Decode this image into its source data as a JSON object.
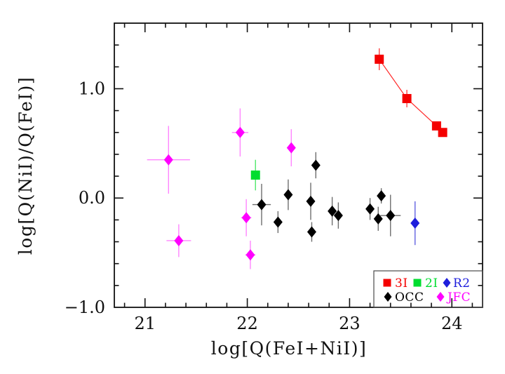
{
  "figure": {
    "background": "#ffffff",
    "frame_color": "#111111"
  },
  "chart_data": {
    "type": "scatter",
    "title": "",
    "xlabel": "log[Q(FeI+NiI)]",
    "ylabel": "log[Q(NiI)/Q(FeI)]",
    "xlim": [
      20.7,
      24.3
    ],
    "ylim": [
      -1.0,
      1.6
    ],
    "grid": false,
    "minor_tick_step": {
      "x": 0.2,
      "y": 0.2
    },
    "x_major_ticks": [
      {
        "value": 21,
        "label": "21"
      },
      {
        "value": 22,
        "label": "22"
      },
      {
        "value": 23,
        "label": "23"
      },
      {
        "value": 24,
        "label": "24"
      }
    ],
    "y_major_ticks": [
      {
        "value": -1.0,
        "label": "−1.0"
      },
      {
        "value": 0.0,
        "label": "0.0"
      },
      {
        "value": 1.0,
        "label": "1.0"
      }
    ],
    "legend": {
      "position": "bottom-right",
      "rows": [
        [
          "3I",
          "2I",
          "R2"
        ],
        [
          "OCC",
          "JFC"
        ]
      ]
    },
    "series": [
      {
        "name": "3I",
        "marker": "square",
        "color": "#f40000",
        "error_color": "#ff4545",
        "connect_line": true,
        "line_color": "#ff2a2a",
        "points": [
          {
            "x": 23.29,
            "y": 1.27,
            "xerr": 0.02,
            "yerr": 0.1
          },
          {
            "x": 23.56,
            "y": 0.91,
            "xerr": 0.04,
            "yerr": 0.08
          },
          {
            "x": 23.85,
            "y": 0.66,
            "xerr": 0.02,
            "yerr": 0.04
          },
          {
            "x": 23.91,
            "y": 0.6,
            "xerr": 0.02,
            "yerr": 0.03
          }
        ]
      },
      {
        "name": "2I",
        "marker": "square",
        "color": "#00dd30",
        "error_color": "#4fe86a",
        "connect_line": false,
        "points": [
          {
            "x": 22.08,
            "y": 0.21,
            "xerr": 0.04,
            "yerr": 0.14
          }
        ]
      },
      {
        "name": "R2",
        "marker": "diamond",
        "color": "#1e1edc",
        "error_color": "#6363e0",
        "connect_line": false,
        "points": [
          {
            "x": 23.64,
            "y": -0.23,
            "xerr": 0.04,
            "yerr": 0.2
          }
        ]
      },
      {
        "name": "OCC",
        "marker": "diamond",
        "color": "#000000",
        "error_color": "#6e6e6e",
        "connect_line": false,
        "points": [
          {
            "x": 22.14,
            "y": -0.06,
            "xerr": 0.09,
            "yerr": 0.19
          },
          {
            "x": 22.3,
            "y": -0.22,
            "xerr": 0.03,
            "yerr": 0.1
          },
          {
            "x": 22.4,
            "y": 0.03,
            "xerr": 0.03,
            "yerr": 0.14
          },
          {
            "x": 22.62,
            "y": -0.03,
            "xerr": 0.03,
            "yerr": 0.17
          },
          {
            "x": 22.63,
            "y": -0.31,
            "xerr": 0.03,
            "yerr": 0.09
          },
          {
            "x": 22.67,
            "y": 0.3,
            "xerr": 0.03,
            "yerr": 0.12
          },
          {
            "x": 22.83,
            "y": -0.12,
            "xerr": 0.03,
            "yerr": 0.13
          },
          {
            "x": 22.89,
            "y": -0.16,
            "xerr": 0.03,
            "yerr": 0.12
          },
          {
            "x": 23.2,
            "y": -0.1,
            "xerr": 0.03,
            "yerr": 0.1
          },
          {
            "x": 23.28,
            "y": -0.19,
            "xerr": 0.03,
            "yerr": 0.11
          },
          {
            "x": 23.31,
            "y": 0.02,
            "xerr": 0.03,
            "yerr": 0.07
          },
          {
            "x": 23.4,
            "y": -0.16,
            "xerr": 0.1,
            "yerr": 0.19
          }
        ]
      },
      {
        "name": "JFC",
        "marker": "diamond",
        "color": "#ff00ff",
        "error_color": "#ff85ff",
        "connect_line": false,
        "points": [
          {
            "x": 21.23,
            "y": 0.35,
            "xerr": 0.21,
            "yerr": 0.31
          },
          {
            "x": 21.33,
            "y": -0.39,
            "xerr": 0.12,
            "yerr": 0.15
          },
          {
            "x": 21.93,
            "y": 0.6,
            "xerr": 0.08,
            "yerr": 0.22
          },
          {
            "x": 21.99,
            "y": -0.18,
            "xerr": 0.05,
            "yerr": 0.17
          },
          {
            "x": 22.03,
            "y": -0.52,
            "xerr": 0.05,
            "yerr": 0.13
          },
          {
            "x": 22.43,
            "y": 0.46,
            "xerr": 0.04,
            "yerr": 0.17
          }
        ]
      }
    ]
  }
}
